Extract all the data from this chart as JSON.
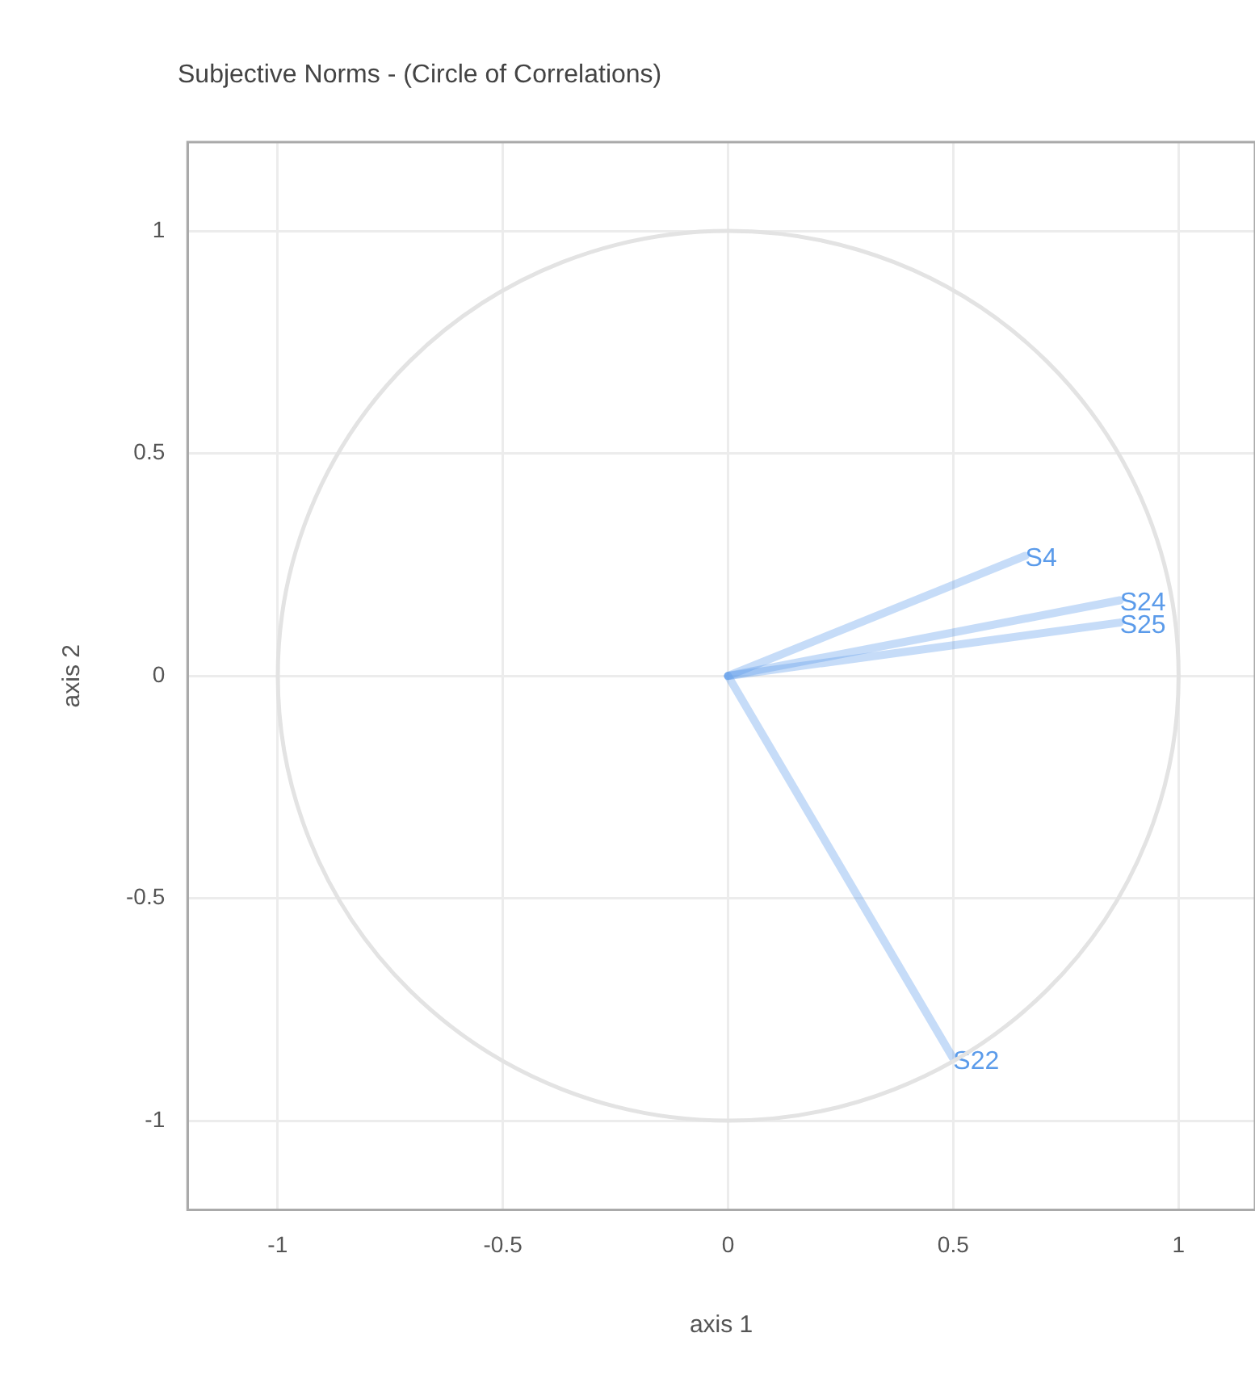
{
  "chart_data": {
    "type": "line",
    "title": "Subjective Norms - (Circle of Correlations)",
    "xlabel": "axis 1",
    "ylabel": "axis 2",
    "xlim": [
      -1.2,
      1.17
    ],
    "ylim": [
      -1.2,
      1.2
    ],
    "xticks": [
      -1,
      -0.5,
      0,
      0.5,
      1
    ],
    "yticks": [
      -1,
      -0.5,
      0,
      0.5,
      1
    ],
    "grid": true,
    "legend": false,
    "marker": "none",
    "series": [
      {
        "name": "S4",
        "color": "#5b9bea",
        "x": [
          0,
          0.66
        ],
        "values": [
          0,
          0.27
        ]
      },
      {
        "name": "S24",
        "color": "#5b9bea",
        "x": [
          0,
          0.87
        ],
        "values": [
          0,
          0.17
        ]
      },
      {
        "name": "S25",
        "color": "#5b9bea",
        "x": [
          0,
          0.87
        ],
        "values": [
          0,
          0.12
        ]
      },
      {
        "name": "S22",
        "color": "#5b9bea",
        "x": [
          0,
          0.5
        ],
        "values": [
          0,
          -0.86
        ]
      }
    ]
  }
}
